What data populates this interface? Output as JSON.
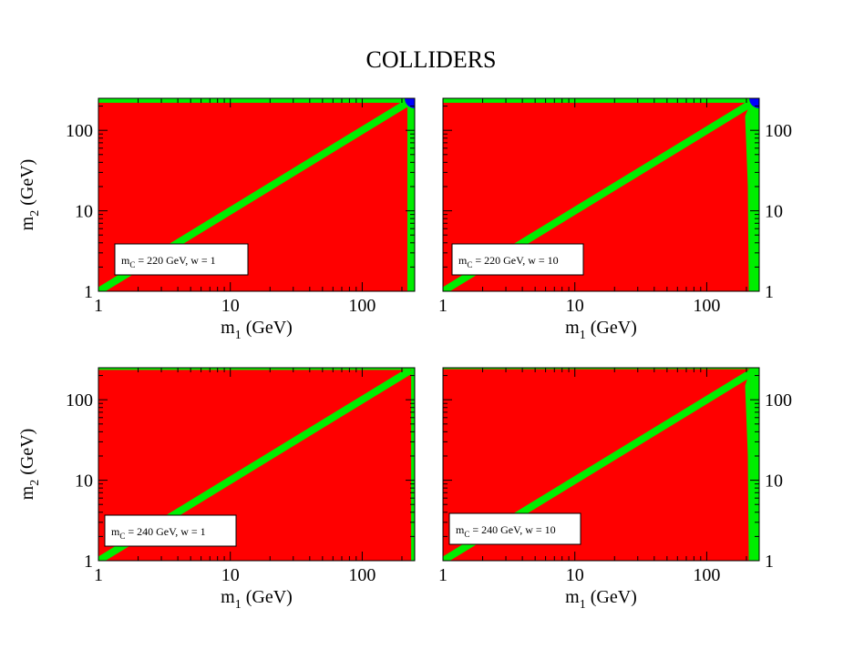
{
  "title": "COLLIDERS",
  "colors": {
    "excluded": "#ff0000",
    "band": "#00ee00",
    "corner": "#0000ff",
    "frame": "#000000",
    "background": "#ffffff"
  },
  "chart_data": [
    {
      "type": "heatmap",
      "panel": "top-left",
      "label_parts": {
        "mc_sym": "m",
        "mc_sub": "C",
        "mc_val": " = 220 GeV,  w = 1"
      },
      "xlabel_parts": {
        "sym": "m",
        "sub": "1",
        "unit": " (GeV)"
      },
      "ylabel_parts": {
        "sym": "m",
        "sub": "2",
        "unit": " (GeV)"
      },
      "xlim": [
        1,
        250
      ],
      "ylim": [
        1,
        250
      ],
      "xscale": "log",
      "yscale": "log",
      "xticks": [
        {
          "v": 1,
          "t": "1"
        },
        {
          "v": 10,
          "t": "10"
        },
        {
          "v": 100,
          "t": "100"
        }
      ],
      "yticks": [
        {
          "v": 1,
          "t": "1"
        },
        {
          "v": 10,
          "t": "10"
        },
        {
          "v": 100,
          "t": "100"
        }
      ],
      "ytick_side": "left",
      "show_xlabel": true,
      "show_ylabel": true,
      "m_top": 220,
      "m_right": 220,
      "diagonal_band": {
        "from": 1,
        "to": 210
      },
      "right_band_bulge": false,
      "corner_blue": true
    },
    {
      "type": "heatmap",
      "panel": "top-right",
      "label_parts": {
        "mc_sym": "m",
        "mc_sub": "C",
        "mc_val": " = 220 GeV,  w = 10"
      },
      "xlabel_parts": {
        "sym": "m",
        "sub": "1",
        "unit": " (GeV)"
      },
      "ylabel_parts": {
        "sym": "",
        "sub": "",
        "unit": ""
      },
      "xlim": [
        1,
        250
      ],
      "ylim": [
        1,
        250
      ],
      "xscale": "log",
      "yscale": "log",
      "xticks": [
        {
          "v": 1,
          "t": "1"
        },
        {
          "v": 10,
          "t": "10"
        },
        {
          "v": 100,
          "t": "100"
        }
      ],
      "yticks": [
        {
          "v": 1,
          "t": "1"
        },
        {
          "v": 10,
          "t": "10"
        },
        {
          "v": 100,
          "t": "100"
        }
      ],
      "ytick_side": "right",
      "show_xlabel": true,
      "show_ylabel": false,
      "m_top": 220,
      "m_right": 215,
      "diagonal_band": {
        "from": 1,
        "to": 210
      },
      "right_band_bulge": true,
      "corner_blue": true
    },
    {
      "type": "heatmap",
      "panel": "bottom-left",
      "label_parts": {
        "mc_sym": "m",
        "mc_sub": "C",
        "mc_val": " = 240 GeV,  w = 1"
      },
      "xlabel_parts": {
        "sym": "m",
        "sub": "1",
        "unit": " (GeV)"
      },
      "ylabel_parts": {
        "sym": "m",
        "sub": "2",
        "unit": " (GeV)"
      },
      "xlim": [
        1,
        250
      ],
      "ylim": [
        1,
        250
      ],
      "xscale": "log",
      "yscale": "log",
      "xticks": [
        {
          "v": 1,
          "t": "1"
        },
        {
          "v": 10,
          "t": "10"
        },
        {
          "v": 100,
          "t": "100"
        }
      ],
      "yticks": [
        {
          "v": 1,
          "t": "1"
        },
        {
          "v": 10,
          "t": "10"
        },
        {
          "v": 100,
          "t": "100"
        }
      ],
      "ytick_side": "left",
      "show_xlabel": true,
      "show_ylabel": true,
      "m_top": 235,
      "m_right": 235,
      "diagonal_band": {
        "from": 1,
        "to": 220
      },
      "right_band_bulge": false,
      "corner_blue": false
    },
    {
      "type": "heatmap",
      "panel": "bottom-right",
      "label_parts": {
        "mc_sym": "m",
        "mc_sub": "C",
        "mc_val": " = 240 GeV,  w = 10"
      },
      "xlabel_parts": {
        "sym": "m",
        "sub": "1",
        "unit": " (GeV)"
      },
      "ylabel_parts": {
        "sym": "",
        "sub": "",
        "unit": ""
      },
      "xlim": [
        1,
        250
      ],
      "ylim": [
        1,
        250
      ],
      "xscale": "log",
      "yscale": "log",
      "xticks": [
        {
          "v": 1,
          "t": "1"
        },
        {
          "v": 10,
          "t": "10"
        },
        {
          "v": 100,
          "t": "100"
        }
      ],
      "yticks": [
        {
          "v": 1,
          "t": "1"
        },
        {
          "v": 10,
          "t": "10"
        },
        {
          "v": 100,
          "t": "100"
        }
      ],
      "ytick_side": "right",
      "show_xlabel": true,
      "show_ylabel": false,
      "m_top": 240,
      "m_right": 215,
      "diagonal_band": {
        "from": 1,
        "to": 215
      },
      "right_band_bulge": true,
      "corner_blue": false
    }
  ]
}
